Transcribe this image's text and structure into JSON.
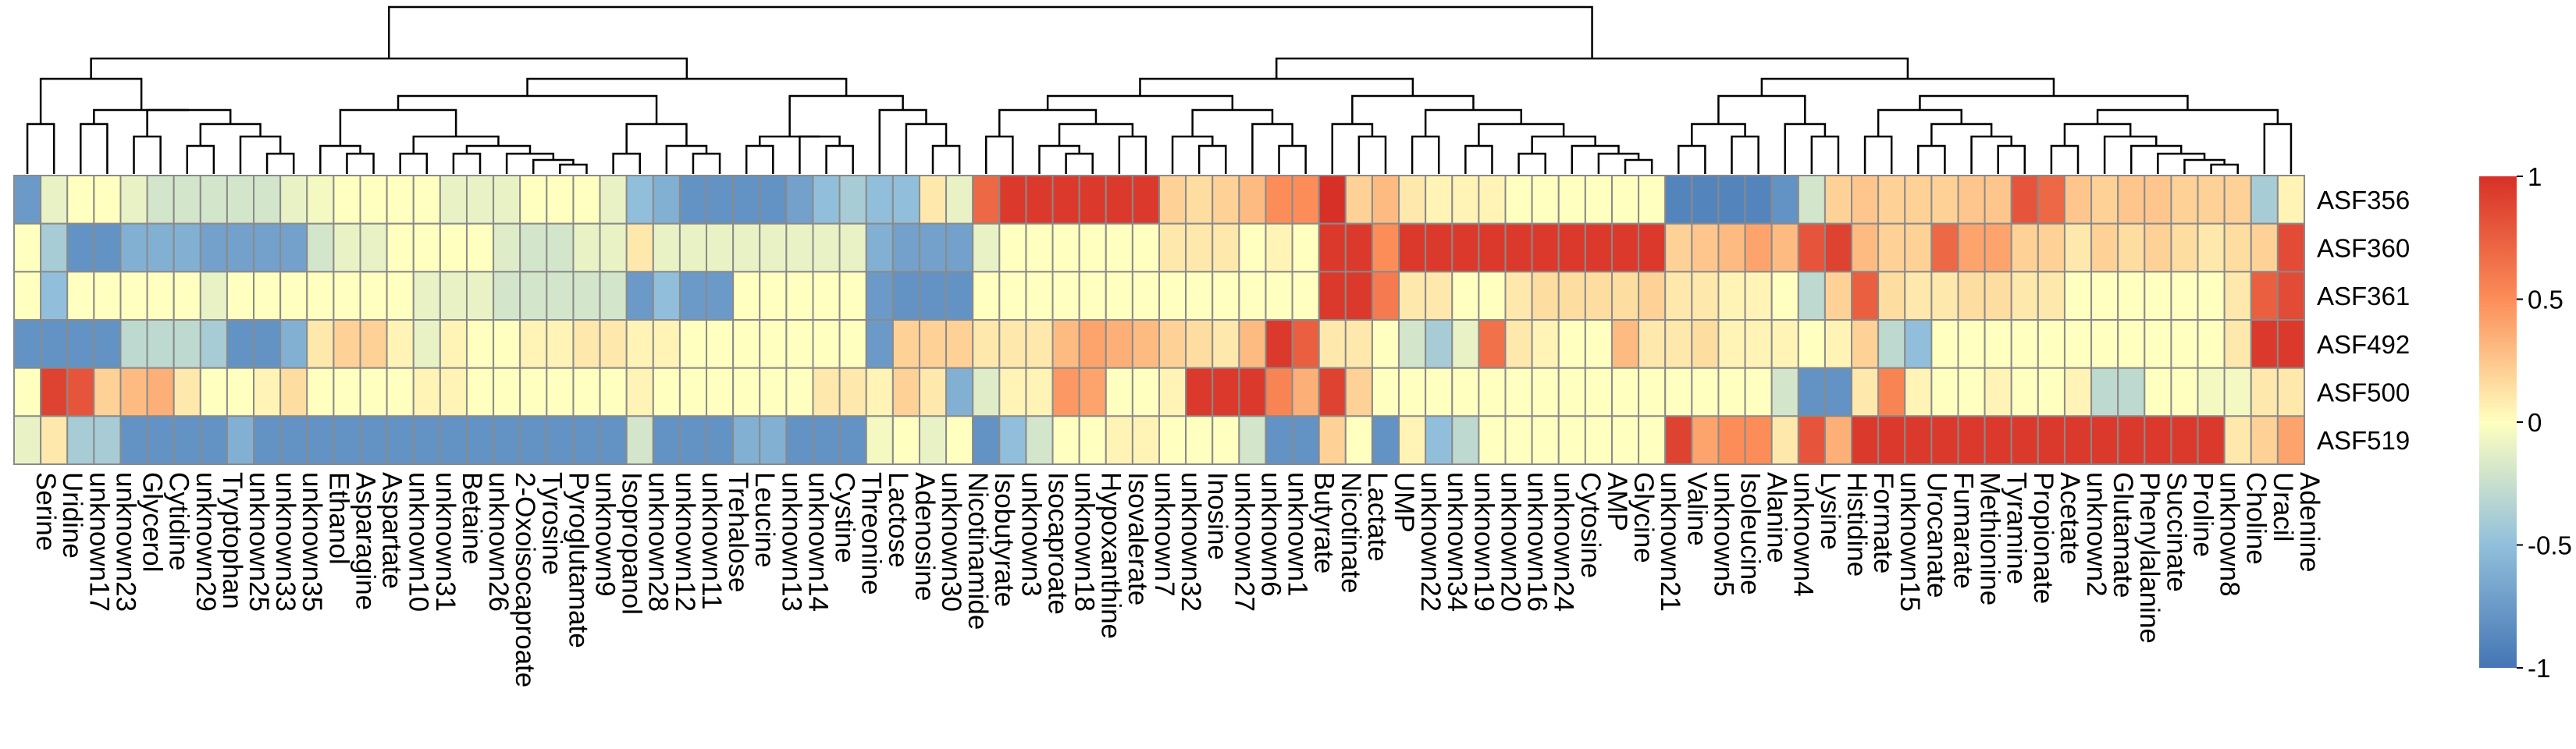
{
  "chart_data": {
    "type": "heatmap",
    "title": "",
    "xlabel": "",
    "ylabel": "",
    "rows": [
      "ASF356",
      "ASF360",
      "ASF361",
      "ASF492",
      "ASF500",
      "ASF519"
    ],
    "columns": [
      "Serine",
      "Uridine",
      "unknown17",
      "unknown23",
      "Glycerol",
      "Cytidine",
      "unknown29",
      "Tryptophan",
      "unknown25",
      "unknown33",
      "unknown35",
      "Ethanol",
      "Asparagine",
      "Aspartate",
      "unknown10",
      "unknown31",
      "Betaine",
      "unknown26",
      "2-Oxoisocaproate",
      "Tyrosine",
      "Pyroglutamate",
      "unknown9",
      "Isopropanol",
      "unknown28",
      "unknown12",
      "unknown11",
      "Trehalose",
      "Leucine",
      "unknown13",
      "unknown14",
      "Cystine",
      "Threonine",
      "Lactose",
      "Adenosine",
      "unknown30",
      "Nicotinamide",
      "Isobutyrate",
      "unknown3",
      "Isocaproate",
      "unknown18",
      "Hypoxanthine",
      "Isovalerate",
      "unknown7",
      "unknown32",
      "Inosine",
      "unknown27",
      "unknown6",
      "unknown1",
      "Butyrate",
      "Nicotinate",
      "Lactate",
      "UMP",
      "unknown22",
      "unknown34",
      "unknown19",
      "unknown20",
      "unknown16",
      "unknown24",
      "Cytosine",
      "AMP",
      "Glycine",
      "unknown21",
      "Valine",
      "unknown5",
      "Isoleucine",
      "Alanine",
      "unknown4",
      "Lysine",
      "Histidine",
      "Formate",
      "unknown15",
      "Urocanate",
      "Fumarate",
      "Methionine",
      "Tyramine",
      "Propionate",
      "Acetate",
      "unknown2",
      "Glutamate",
      "Phenylalanine",
      "Succinate",
      "Proline",
      "unknown8",
      "Choline",
      "Uracil",
      "Adenine"
    ],
    "values": [
      [
        -0.75,
        -0.1,
        0,
        0,
        -0.1,
        -0.2,
        -0.2,
        -0.2,
        -0.2,
        -0.2,
        -0.1,
        -0.05,
        0,
        0,
        0,
        0,
        -0.1,
        -0.1,
        -0.1,
        0,
        0,
        0,
        -0.1,
        -0.5,
        -0.6,
        -0.8,
        -0.8,
        -0.8,
        -0.8,
        -0.7,
        -0.5,
        -0.4,
        -0.5,
        -0.5,
        0.1,
        -0.1,
        0.7,
        0.95,
        0.95,
        0.95,
        0.95,
        0.95,
        0.95,
        0.2,
        0.15,
        0.2,
        0.3,
        0.5,
        0.5,
        1,
        0.2,
        0.3,
        0.1,
        0.05,
        0.05,
        0.05,
        0,
        0,
        0,
        0,
        0,
        0,
        -0.9,
        -0.9,
        -0.9,
        -0.9,
        -0.8,
        -0.2,
        0.2,
        0.25,
        0.2,
        0.2,
        0.2,
        0.25,
        0.25,
        0.8,
        0.7,
        0.25,
        0.2,
        0.25,
        0.25,
        0.2,
        0.2,
        0.2,
        -0.4,
        0.05
      ],
      [
        0,
        -0.4,
        -0.8,
        -0.8,
        -0.6,
        -0.6,
        -0.6,
        -0.7,
        -0.7,
        -0.7,
        -0.7,
        -0.2,
        -0.1,
        -0.1,
        0,
        0,
        0,
        0,
        -0.15,
        -0.2,
        -0.2,
        -0.1,
        -0.1,
        0.1,
        -0.1,
        -0.1,
        -0.1,
        -0.1,
        -0.1,
        -0.1,
        -0.1,
        -0.1,
        -0.6,
        -0.7,
        -0.7,
        -0.7,
        -0.1,
        0,
        0,
        0,
        0,
        0,
        0,
        0.1,
        0.1,
        0.1,
        0,
        0.05,
        0,
        0.95,
        0.95,
        0.5,
        0.95,
        0.95,
        0.95,
        0.95,
        0.95,
        0.95,
        0.95,
        0.95,
        0.95,
        0.95,
        0.2,
        0.25,
        0.3,
        0.4,
        0.3,
        0.8,
        0.9,
        0.3,
        0.2,
        0.2,
        0.7,
        0.4,
        0.4,
        0.2,
        0.2,
        0.1,
        0.2,
        0.15,
        0.2,
        0.15,
        0.1,
        0.15,
        0.2,
        0.85
      ],
      [
        0,
        -0.5,
        0,
        0,
        0,
        0,
        0,
        -0.1,
        0,
        0,
        0,
        0,
        0,
        0,
        0,
        -0.1,
        -0.1,
        -0.1,
        -0.2,
        -0.2,
        -0.2,
        -0.2,
        -0.2,
        -0.75,
        -0.5,
        -0.75,
        -0.75,
        0,
        0,
        0,
        0,
        0,
        -0.75,
        -0.8,
        -0.8,
        -0.8,
        0,
        0,
        0,
        0,
        0,
        0,
        0,
        0,
        0,
        0,
        0,
        0,
        0,
        0.95,
        0.95,
        0.6,
        0.1,
        0.1,
        0,
        0,
        0.1,
        0.15,
        0.15,
        0.15,
        0.15,
        0.2,
        0.1,
        0.1,
        0.05,
        0.05,
        0,
        -0.3,
        0.2,
        0.75,
        0.15,
        0.1,
        0.1,
        0.15,
        0.15,
        0.1,
        0.1,
        0,
        0,
        0,
        0,
        0,
        0,
        0.1,
        0.75,
        0.85
      ],
      [
        -0.8,
        -0.8,
        -0.8,
        -0.8,
        -0.3,
        -0.3,
        -0.3,
        -0.4,
        -0.8,
        -0.8,
        -0.6,
        0.1,
        0.2,
        0.2,
        0.05,
        -0.1,
        0.05,
        0,
        0,
        0.05,
        0.05,
        0.1,
        0.1,
        0.05,
        0.05,
        0,
        0,
        0,
        0,
        0,
        0,
        0,
        -0.75,
        0.2,
        0.2,
        0.2,
        0.1,
        0.1,
        0.1,
        0.3,
        0.4,
        0.35,
        0.3,
        0.2,
        0.15,
        0.1,
        0.3,
        0.95,
        0.75,
        0.1,
        0.1,
        0,
        -0.2,
        -0.4,
        -0.1,
        0.65,
        0.1,
        0.05,
        0,
        0,
        0.3,
        0.1,
        0.1,
        0.15,
        0.05,
        0.05,
        0.05,
        0,
        0.05,
        0.2,
        -0.3,
        -0.5,
        0,
        0,
        0,
        0,
        0,
        0,
        0,
        0,
        0,
        0,
        0,
        0.1,
        0.95,
        0.95
      ],
      [
        0,
        0.9,
        0.8,
        0.2,
        0.3,
        0.35,
        0.1,
        0,
        0,
        0.05,
        0.15,
        0,
        0,
        0,
        0,
        0.05,
        0.05,
        0,
        0,
        0,
        0,
        0,
        0,
        0.05,
        0,
        0,
        0,
        0,
        0,
        0,
        0.1,
        0.1,
        0.05,
        0.2,
        0.1,
        -0.6,
        -0.15,
        0.05,
        0.05,
        0.45,
        0.4,
        0,
        0,
        0.05,
        0.95,
        0.95,
        0.95,
        0.55,
        0.35,
        0.9,
        0.2,
        0,
        0,
        0,
        0,
        0,
        0,
        0,
        0,
        0,
        0,
        0,
        0,
        0,
        0,
        0,
        -0.2,
        -0.8,
        -0.8,
        0.1,
        0.55,
        0.05,
        0,
        0,
        0.05,
        0,
        0,
        0.05,
        -0.3,
        -0.3,
        0,
        0,
        -0.05,
        -0.05,
        0.1,
        0.1
      ],
      [
        -0.1,
        0.1,
        -0.4,
        -0.4,
        -0.8,
        -0.8,
        -0.8,
        -0.8,
        -0.6,
        -0.8,
        -0.8,
        -0.8,
        -0.8,
        -0.8,
        -0.8,
        -0.8,
        -0.8,
        -0.8,
        -0.8,
        -0.8,
        -0.8,
        -0.8,
        -0.8,
        -0.2,
        -0.8,
        -0.8,
        -0.8,
        -0.6,
        -0.6,
        -0.8,
        -0.8,
        -0.8,
        -0.05,
        0,
        -0.1,
        0,
        -0.8,
        -0.5,
        -0.2,
        0,
        0,
        0.05,
        0.05,
        0,
        0,
        0,
        -0.2,
        -0.8,
        -0.8,
        0.2,
        0,
        -0.8,
        0.05,
        -0.5,
        -0.3,
        0,
        0,
        0,
        0,
        0,
        0,
        0,
        0.9,
        0.4,
        0.5,
        0.5,
        0.1,
        0.8,
        0.35,
        0.95,
        0.95,
        0.95,
        0.95,
        0.95,
        0.95,
        0.95,
        0.95,
        0.95,
        0.95,
        0.95,
        0.95,
        0.95,
        0.95,
        0.1,
        0.2,
        0.4
      ]
    ],
    "color_scale": {
      "min": -1,
      "max": 1,
      "ticks": [
        "-1",
        "-0.5",
        "0",
        "0.5",
        "1"
      ],
      "colors": [
        "#4575b4",
        "#91bfdb",
        "#ffffbf",
        "#fc8d59",
        "#d73027"
      ]
    },
    "column_dendrogram": true,
    "legend_position": "right"
  }
}
